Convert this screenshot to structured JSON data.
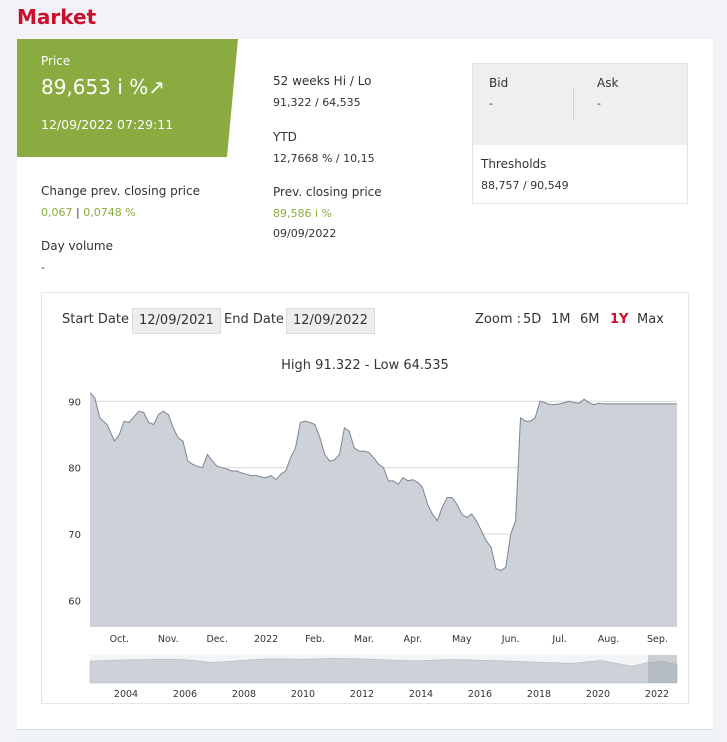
{
  "page": {
    "title": "Market"
  },
  "price": {
    "label": "Price",
    "value": "89,653 i %",
    "arrow": "↗",
    "datetime": "12/09/2022  07:29:11"
  },
  "change": {
    "label": "Change prev. closing price",
    "value_abs": "0,067",
    "separator": "|",
    "value_pct": "0,0748 %"
  },
  "volume": {
    "label": "Day volume",
    "value": "-"
  },
  "week52": {
    "label": "52 weeks Hi / Lo",
    "value": "91,322 / 64,535"
  },
  "ytd": {
    "label": "YTD",
    "value": "12,7668 % / 10,15"
  },
  "prev_close": {
    "label": "Prev. closing price",
    "value": "89,586 i %",
    "date": "09/09/2022"
  },
  "bid": {
    "label": "Bid",
    "value": "-"
  },
  "ask": {
    "label": "Ask",
    "value": "-"
  },
  "thresholds": {
    "label": "Thresholds",
    "value": "88,757 / 90,549"
  },
  "chart_controls": {
    "start_label": "Start Date",
    "start_value": "12/09/2021",
    "end_label": "End Date",
    "end_value": "12/09/2022",
    "zoom_label": "Zoom :",
    "zoom_options": [
      "5D",
      "1M",
      "6M",
      "1Y",
      "Max"
    ],
    "zoom_active": "1Y"
  },
  "colors": {
    "brand_red": "#c8102e",
    "price_green": "#8aab3f",
    "area_fill": "#cdd2d8",
    "area_stroke": "#7c8590"
  },
  "chart_data": {
    "type": "area",
    "title": "High 91.322 - Low 64.535",
    "ylim": [
      56,
      92
    ],
    "yticks": [
      60,
      70,
      80,
      90
    ],
    "grid": true,
    "xlim": [
      0,
      12
    ],
    "xticks": [
      {
        "x": 0.6,
        "label": "Oct."
      },
      {
        "x": 1.6,
        "label": "Nov."
      },
      {
        "x": 2.6,
        "label": "Dec."
      },
      {
        "x": 3.6,
        "label": "2022"
      },
      {
        "x": 4.6,
        "label": "Feb."
      },
      {
        "x": 5.6,
        "label": "Mar."
      },
      {
        "x": 6.6,
        "label": "Apr."
      },
      {
        "x": 7.6,
        "label": "May"
      },
      {
        "x": 8.6,
        "label": "Jun."
      },
      {
        "x": 9.6,
        "label": "Jul."
      },
      {
        "x": 10.6,
        "label": "Aug."
      },
      {
        "x": 11.6,
        "label": "Sep."
      }
    ],
    "x": [
      0.0,
      0.1,
      0.2,
      0.35,
      0.5,
      0.6,
      0.7,
      0.8,
      1.0,
      1.1,
      1.2,
      1.3,
      1.4,
      1.5,
      1.6,
      1.7,
      1.8,
      1.9,
      2.0,
      2.1,
      2.2,
      2.3,
      2.4,
      2.5,
      2.6,
      2.7,
      2.8,
      2.9,
      3.0,
      3.1,
      3.2,
      3.3,
      3.4,
      3.5,
      3.6,
      3.7,
      3.8,
      3.9,
      4.0,
      4.1,
      4.2,
      4.3,
      4.4,
      4.5,
      4.6,
      4.7,
      4.8,
      4.9,
      5.0,
      5.1,
      5.2,
      5.3,
      5.4,
      5.5,
      5.6,
      5.7,
      5.8,
      5.9,
      6.0,
      6.1,
      6.2,
      6.3,
      6.4,
      6.5,
      6.6,
      6.7,
      6.8,
      6.9,
      7.0,
      7.1,
      7.2,
      7.3,
      7.4,
      7.5,
      7.6,
      7.7,
      7.8,
      7.9,
      8.0,
      8.1,
      8.2,
      8.3,
      8.4,
      8.5,
      8.6,
      8.7,
      8.8,
      8.9,
      9.0,
      9.1,
      9.2,
      9.3,
      9.4,
      9.5,
      9.6,
      9.7,
      9.8,
      9.9,
      10.0,
      10.1,
      10.2,
      10.3,
      10.4,
      10.5,
      10.6,
      10.7,
      10.8,
      10.9,
      11.0,
      11.1,
      11.2,
      11.3,
      11.4,
      11.5,
      11.6,
      11.7,
      11.8,
      11.9,
      12.0
    ],
    "series": [
      {
        "values": [
          91.3,
          90.5,
          87.5,
          86.5,
          84.0,
          85.0,
          87.0,
          86.8,
          88.5,
          88.3,
          86.8,
          86.5,
          88.0,
          88.5,
          88.0,
          86.0,
          84.5,
          84.0,
          81.0,
          80.5,
          80.2,
          80.0,
          82.0,
          81.0,
          80.2,
          80.0,
          79.8,
          79.5,
          79.5,
          79.2,
          79.0,
          78.8,
          78.8,
          78.6,
          78.5,
          78.8,
          78.2,
          79.0,
          79.5,
          81.5,
          83.0,
          86.8,
          87.0,
          86.8,
          86.5,
          84.5,
          82.0,
          81.0,
          81.2,
          82.0,
          86.0,
          85.5,
          83.0,
          82.5,
          82.5,
          82.3,
          81.5,
          80.5,
          80.0,
          78.0,
          78.0,
          77.5,
          78.5,
          78.0,
          78.2,
          77.8,
          77.0,
          74.5,
          73.0,
          72.0,
          74.0,
          75.5,
          75.5,
          74.5,
          73.0,
          72.5,
          73.0,
          72.0,
          70.5,
          69.0,
          68.0,
          64.8,
          64.5,
          65.0,
          70.0,
          72.0,
          87.5,
          87.0,
          87.0,
          87.5,
          90.0,
          89.8,
          89.5,
          89.5,
          89.6,
          89.8,
          90.0,
          89.8,
          89.7,
          90.3,
          89.8,
          89.5,
          89.7,
          89.6,
          89.6,
          89.6,
          89.6,
          89.6,
          89.6,
          89.6,
          89.6,
          89.6,
          89.6,
          89.6,
          89.6,
          89.6,
          89.6,
          89.6,
          89.6
        ]
      }
    ],
    "navigator": {
      "xticks": [
        "2004",
        "2006",
        "2008",
        "2010",
        "2012",
        "2014",
        "2016",
        "2018",
        "2020",
        "2022"
      ],
      "values": [
        0.78,
        0.8,
        0.82,
        0.83,
        0.84,
        0.85,
        0.84,
        0.8,
        0.74,
        0.76,
        0.8,
        0.84,
        0.86,
        0.86,
        0.85,
        0.86,
        0.88,
        0.87,
        0.86,
        0.84,
        0.82,
        0.8,
        0.8,
        0.82,
        0.84,
        0.83,
        0.81,
        0.8,
        0.78,
        0.76,
        0.74,
        0.72,
        0.7,
        0.76,
        0.8,
        0.7,
        0.6,
        0.72,
        0.78,
        0.66
      ]
    }
  }
}
